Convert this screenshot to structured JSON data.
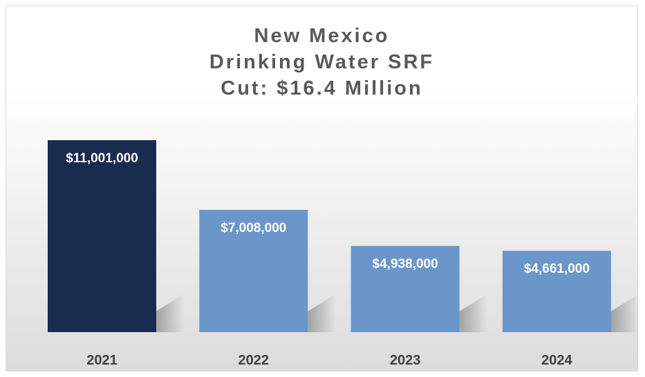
{
  "chart_data": {
    "type": "bar",
    "title_lines": [
      "New Mexico",
      "Drinking Water SRF",
      "Cut: $16.4 Million"
    ],
    "categories": [
      "2021",
      "2022",
      "2023",
      "2024"
    ],
    "values": [
      11001000,
      7008000,
      4938000,
      4661000
    ],
    "data_labels": [
      "$11,001,000",
      "$7,008,000",
      "$4,938,000",
      "$4,661,000"
    ],
    "bar_colors": [
      "#1a2b50",
      "#6b96c9",
      "#6b96c9",
      "#6b96c9"
    ],
    "ylim": [
      0,
      11001000
    ],
    "grid": false,
    "legend": "none"
  }
}
